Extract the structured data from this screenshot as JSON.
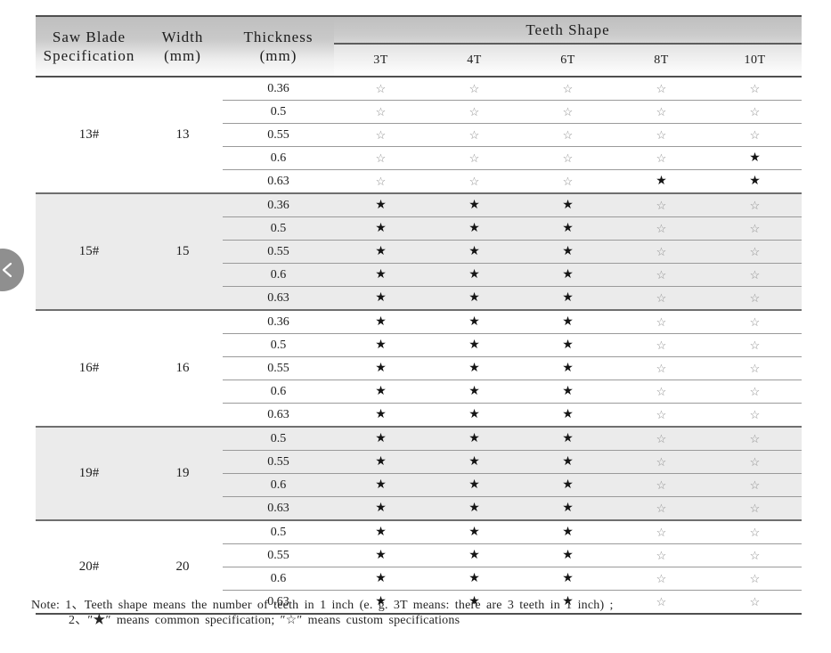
{
  "table": {
    "header": {
      "spec_line1": "Saw Blade",
      "spec_line2": "Specification",
      "width_line1": "Width",
      "width_line2": "(mm)",
      "thickness_line1": "Thickness",
      "thickness_line2": "(mm)",
      "teeth_shape": "Teeth Shape",
      "teeth_cols": [
        "3T",
        "4T",
        "6T",
        "8T",
        "10T"
      ]
    },
    "groups": [
      {
        "spec": "13#",
        "width": "13",
        "rows": [
          {
            "thickness": "0.36",
            "stars": [
              "☆",
              "☆",
              "☆",
              "☆",
              "☆"
            ]
          },
          {
            "thickness": "0.5",
            "stars": [
              "☆",
              "☆",
              "☆",
              "☆",
              "☆"
            ]
          },
          {
            "thickness": "0.55",
            "stars": [
              "☆",
              "☆",
              "☆",
              "☆",
              "☆"
            ]
          },
          {
            "thickness": "0.6",
            "stars": [
              "☆",
              "☆",
              "☆",
              "☆",
              "★"
            ]
          },
          {
            "thickness": "0.63",
            "stars": [
              "☆",
              "☆",
              "☆",
              "★",
              "★"
            ]
          }
        ]
      },
      {
        "spec": "15#",
        "width": "15",
        "rows": [
          {
            "thickness": "0.36",
            "stars": [
              "★",
              "★",
              "★",
              "☆",
              "☆"
            ]
          },
          {
            "thickness": "0.5",
            "stars": [
              "★",
              "★",
              "★",
              "☆",
              "☆"
            ]
          },
          {
            "thickness": "0.55",
            "stars": [
              "★",
              "★",
              "★",
              "☆",
              "☆"
            ]
          },
          {
            "thickness": "0.6",
            "stars": [
              "★",
              "★",
              "★",
              "☆",
              "☆"
            ]
          },
          {
            "thickness": "0.63",
            "stars": [
              "★",
              "★",
              "★",
              "☆",
              "☆"
            ]
          }
        ]
      },
      {
        "spec": "16#",
        "width": "16",
        "rows": [
          {
            "thickness": "0.36",
            "stars": [
              "★",
              "★",
              "★",
              "☆",
              "☆"
            ]
          },
          {
            "thickness": "0.5",
            "stars": [
              "★",
              "★",
              "★",
              "☆",
              "☆"
            ]
          },
          {
            "thickness": "0.55",
            "stars": [
              "★",
              "★",
              "★",
              "☆",
              "☆"
            ]
          },
          {
            "thickness": "0.6",
            "stars": [
              "★",
              "★",
              "★",
              "☆",
              "☆"
            ]
          },
          {
            "thickness": "0.63",
            "stars": [
              "★",
              "★",
              "★",
              "☆",
              "☆"
            ]
          }
        ]
      },
      {
        "spec": "19#",
        "width": "19",
        "rows": [
          {
            "thickness": "0.5",
            "stars": [
              "★",
              "★",
              "★",
              "☆",
              "☆"
            ]
          },
          {
            "thickness": "0.55",
            "stars": [
              "★",
              "★",
              "★",
              "☆",
              "☆"
            ]
          },
          {
            "thickness": "0.6",
            "stars": [
              "★",
              "★",
              "★",
              "☆",
              "☆"
            ]
          },
          {
            "thickness": "0.63",
            "stars": [
              "★",
              "★",
              "★",
              "☆",
              "☆"
            ]
          }
        ]
      },
      {
        "spec": "20#",
        "width": "20",
        "rows": [
          {
            "thickness": "0.5",
            "stars": [
              "★",
              "★",
              "★",
              "☆",
              "☆"
            ]
          },
          {
            "thickness": "0.55",
            "stars": [
              "★",
              "★",
              "★",
              "☆",
              "☆"
            ]
          },
          {
            "thickness": "0.6",
            "stars": [
              "★",
              "★",
              "★",
              "☆",
              "☆"
            ]
          },
          {
            "thickness": "0.63",
            "stars": [
              "★",
              "★",
              "★",
              "☆",
              "☆"
            ]
          }
        ]
      }
    ]
  },
  "legend": {
    "common_symbol": "★",
    "common_meaning": "common specification",
    "custom_symbol": "☆",
    "custom_meaning": "custom specifications"
  },
  "notes": {
    "line1": "Note: 1、Teeth shape means the number of teeth in 1 inch (e. g.  3T   means: there are 3 teeth in 1 inch) ;",
    "line2": "2、″★″ means common specification;  ″☆″ means custom specifications"
  },
  "icons": {
    "carousel_prev": "chevron-left"
  },
  "colors": {
    "header_gradient_top": "#bfbfbf",
    "shaded_group_row": "#ebebeb",
    "star_filled": "#141414",
    "star_hollow": "#8f8f8f",
    "carousel_button": "#8f8f8f"
  }
}
